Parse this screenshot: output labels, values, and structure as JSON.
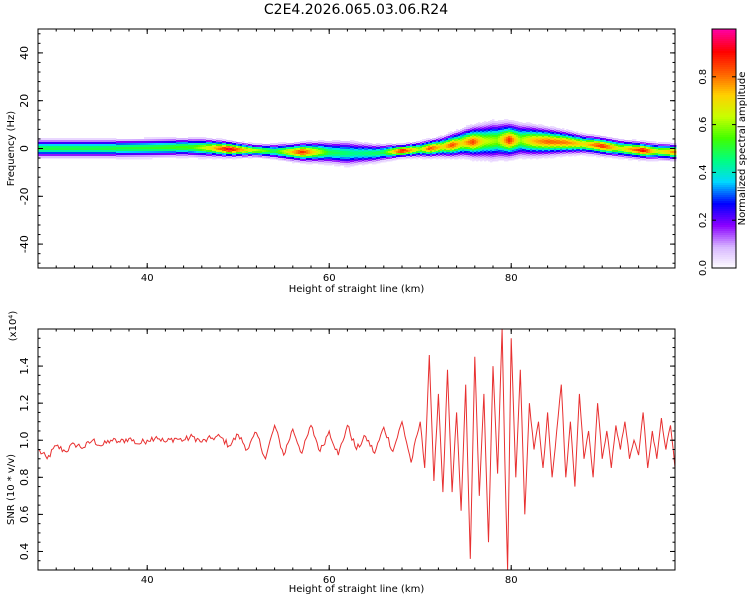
{
  "title": "C2E4.2026.065.03.06.R24",
  "chart_data": [
    {
      "type": "heatmap",
      "title": "",
      "xlabel": "Height of straight line (km)",
      "ylabel": "Frequency (Hz)",
      "xlim": [
        28,
        98
      ],
      "ylim": [
        -50,
        50
      ],
      "xticks": [
        "40",
        "60",
        "80"
      ],
      "yticks": [
        "40",
        "20",
        "0",
        "-20",
        "-40"
      ],
      "colorbar": {
        "label": "Normalized spectral amplitude",
        "range": [
          0.0,
          1.0
        ],
        "ticks": [
          "0.0",
          "0.2",
          "0.4",
          "0.6",
          "0.8"
        ],
        "colormap": [
          "#ffffff",
          "#d8b8ff",
          "#8a00ff",
          "#0000ff",
          "#00d8ff",
          "#00ff80",
          "#40ff00",
          "#c8ff00",
          "#ffd000",
          "#ff6000",
          "#ff0000",
          "#ff00a0"
        ]
      },
      "ridge_frequency": [
        {
          "x": 28,
          "f": 0.0
        },
        {
          "x": 32,
          "f": 0.0
        },
        {
          "x": 36,
          "f": 0.0
        },
        {
          "x": 40,
          "f": 0.2
        },
        {
          "x": 44,
          "f": 0.5
        },
        {
          "x": 47,
          "f": 0.2
        },
        {
          "x": 50,
          "f": -0.5
        },
        {
          "x": 53,
          "f": -1.0
        },
        {
          "x": 56,
          "f": -1.5
        },
        {
          "x": 59,
          "f": -1.5
        },
        {
          "x": 62,
          "f": -2.0
        },
        {
          "x": 65,
          "f": -2.0
        },
        {
          "x": 68,
          "f": -1.0
        },
        {
          "x": 71,
          "f": 0.0
        },
        {
          "x": 73,
          "f": 1.0
        },
        {
          "x": 75,
          "f": 2.5
        },
        {
          "x": 77,
          "f": 3.0
        },
        {
          "x": 79,
          "f": 3.5
        },
        {
          "x": 81,
          "f": 3.5
        },
        {
          "x": 83,
          "f": 3.0
        },
        {
          "x": 86,
          "f": 2.5
        },
        {
          "x": 89,
          "f": 1.5
        },
        {
          "x": 92,
          "f": 0.0
        },
        {
          "x": 95,
          "f": -1.0
        },
        {
          "x": 98,
          "f": -1.5
        }
      ],
      "ridge_amplitude": [
        {
          "x": 28,
          "a": 0.5
        },
        {
          "x": 34,
          "a": 0.5
        },
        {
          "x": 40,
          "a": 0.52
        },
        {
          "x": 45,
          "a": 0.55
        },
        {
          "x": 47,
          "a": 0.7
        },
        {
          "x": 49,
          "a": 0.95
        },
        {
          "x": 51,
          "a": 0.7
        },
        {
          "x": 54,
          "a": 0.5
        },
        {
          "x": 57,
          "a": 0.88
        },
        {
          "x": 60,
          "a": 0.5
        },
        {
          "x": 63,
          "a": 0.45
        },
        {
          "x": 66,
          "a": 0.5
        },
        {
          "x": 68,
          "a": 0.92
        },
        {
          "x": 70,
          "a": 0.6
        },
        {
          "x": 71,
          "a": 0.85
        },
        {
          "x": 72.5,
          "a": 0.7
        },
        {
          "x": 73.5,
          "a": 0.85
        },
        {
          "x": 74.5,
          "a": 0.7
        },
        {
          "x": 75.8,
          "a": 0.85
        },
        {
          "x": 77,
          "a": 0.65
        },
        {
          "x": 78.5,
          "a": 0.6
        },
        {
          "x": 79.8,
          "a": 0.88
        },
        {
          "x": 81,
          "a": 0.6
        },
        {
          "x": 82.5,
          "a": 0.75
        },
        {
          "x": 84,
          "a": 0.82
        },
        {
          "x": 86,
          "a": 0.8
        },
        {
          "x": 88,
          "a": 0.7
        },
        {
          "x": 90,
          "a": 0.88
        },
        {
          "x": 92,
          "a": 0.65
        },
        {
          "x": 94.5,
          "a": 0.92
        },
        {
          "x": 96,
          "a": 0.65
        },
        {
          "x": 98,
          "a": 0.8
        }
      ],
      "ridge_width": [
        {
          "x": 28,
          "w": 3.0
        },
        {
          "x": 46,
          "w": 3.0
        },
        {
          "x": 52,
          "w": 2.0
        },
        {
          "x": 62,
          "w": 4.0
        },
        {
          "x": 68,
          "w": 2.0
        },
        {
          "x": 72,
          "w": 3.0
        },
        {
          "x": 78,
          "w": 6.0
        },
        {
          "x": 82,
          "w": 5.0
        },
        {
          "x": 88,
          "w": 3.0
        },
        {
          "x": 98,
          "w": 2.5
        }
      ]
    },
    {
      "type": "line",
      "title": "",
      "xlabel": "Height of straight line (km)",
      "ylabel": "SNR (10 * v/v)",
      "y_multiplier": "(x10⁴)",
      "xlim": [
        28,
        98
      ],
      "ylim": [
        0.3,
        1.6
      ],
      "xticks": [
        "40",
        "60",
        "80"
      ],
      "yticks": [
        "1.4",
        "1.2",
        "1.0",
        "0.8",
        "0.6",
        "0.4"
      ],
      "series": [
        {
          "color": "#e83030",
          "x": [
            28,
            29,
            30,
            31,
            32,
            33,
            34,
            35,
            36,
            37,
            38,
            39,
            40,
            41,
            42,
            43,
            44,
            45,
            46,
            47,
            48,
            49,
            50,
            51,
            52,
            53,
            54,
            55,
            56,
            57,
            58,
            59,
            60,
            61,
            62,
            63,
            64,
            65,
            66,
            67,
            68,
            69,
            70,
            70.5,
            71,
            71.5,
            72,
            72.5,
            73,
            73.5,
            74,
            74.5,
            75,
            75.5,
            76,
            76.5,
            77,
            77.5,
            78,
            78.5,
            79,
            79.3,
            79.6,
            80,
            80.5,
            81,
            81.5,
            82,
            82.5,
            83,
            83.5,
            84,
            84.5,
            85,
            85.5,
            86,
            86.5,
            87,
            87.5,
            88,
            88.5,
            89,
            89.5,
            90,
            90.5,
            91,
            91.5,
            92,
            92.5,
            93,
            93.5,
            94,
            94.5,
            95,
            95.5,
            96,
            96.5,
            97,
            97.5,
            98
          ],
          "y": [
            0.95,
            0.9,
            0.97,
            0.94,
            0.98,
            0.96,
            1.0,
            0.97,
            1.0,
            0.99,
            1.01,
            0.98,
            1.0,
            1.02,
            0.99,
            1.01,
            1.0,
            1.02,
            0.99,
            1.01,
            1.02,
            0.97,
            1.03,
            0.95,
            1.04,
            0.9,
            1.08,
            0.92,
            1.06,
            0.93,
            1.08,
            0.94,
            1.05,
            0.92,
            1.08,
            0.95,
            1.02,
            0.93,
            1.07,
            0.94,
            1.1,
            0.88,
            1.1,
            0.85,
            1.46,
            0.78,
            1.25,
            0.72,
            1.38,
            0.72,
            1.15,
            0.62,
            1.3,
            0.36,
            1.45,
            0.7,
            1.25,
            0.45,
            1.4,
            0.82,
            1.6,
            0.9,
            0.3,
            1.55,
            0.8,
            1.38,
            0.6,
            1.2,
            0.95,
            1.1,
            0.85,
            1.15,
            0.8,
            1.05,
            1.3,
            0.8,
            1.1,
            0.75,
            1.25,
            0.9,
            1.05,
            0.8,
            1.2,
            0.9,
            1.05,
            0.85,
            1.08,
            0.95,
            1.1,
            0.9,
            1.0,
            0.92,
            1.15,
            0.85,
            1.05,
            0.9,
            1.12,
            0.95,
            1.08,
            0.85
          ]
        }
      ]
    }
  ]
}
